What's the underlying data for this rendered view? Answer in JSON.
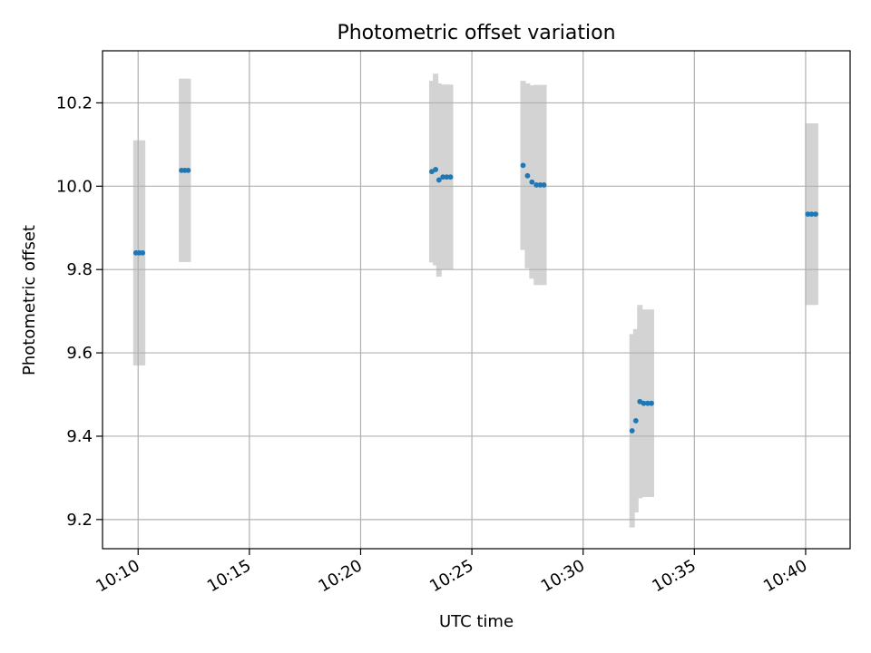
{
  "chart_data": {
    "type": "scatter",
    "title": "Photometric offset variation",
    "xlabel": "UTC time",
    "ylabel": "Photometric offset",
    "x_unit": "minutes after 10:00 UTC",
    "xlim": [
      8.4,
      42.0
    ],
    "ylim": [
      9.13,
      10.325
    ],
    "grid": true,
    "x_ticks": [
      {
        "value": 10,
        "label": "10:10"
      },
      {
        "value": 15,
        "label": "10:15"
      },
      {
        "value": 20,
        "label": "10:20"
      },
      {
        "value": 25,
        "label": "10:25"
      },
      {
        "value": 30,
        "label": "10:30"
      },
      {
        "value": 35,
        "label": "10:35"
      },
      {
        "value": 40,
        "label": "10:40"
      }
    ],
    "y_ticks": [
      {
        "value": 9.2,
        "label": "9.2"
      },
      {
        "value": 9.4,
        "label": "9.4"
      },
      {
        "value": 9.6,
        "label": "9.6"
      },
      {
        "value": 9.8,
        "label": "9.8"
      },
      {
        "value": 10.0,
        "label": "10.0"
      },
      {
        "value": 10.2,
        "label": "10.2"
      }
    ],
    "series": [
      {
        "name": "Photometric offset",
        "color": "#1f77b4",
        "error_color": "#d3d3d3",
        "points": [
          {
            "x": 9.9,
            "y": 9.84,
            "err": 0.27
          },
          {
            "x": 10.05,
            "y": 9.84,
            "err": 0.27
          },
          {
            "x": 10.2,
            "y": 9.84,
            "err": 0.27
          },
          {
            "x": 11.95,
            "y": 10.038,
            "err": 0.22
          },
          {
            "x": 12.1,
            "y": 10.038,
            "err": 0.22
          },
          {
            "x": 12.25,
            "y": 10.038,
            "err": 0.22
          },
          {
            "x": 23.2,
            "y": 10.035,
            "err": 0.218
          },
          {
            "x": 23.37,
            "y": 10.04,
            "err": 0.23
          },
          {
            "x": 23.52,
            "y": 10.015,
            "err": 0.232
          },
          {
            "x": 23.7,
            "y": 10.022,
            "err": 0.222
          },
          {
            "x": 23.87,
            "y": 10.022,
            "err": 0.222
          },
          {
            "x": 24.04,
            "y": 10.022,
            "err": 0.222
          },
          {
            "x": 27.3,
            "y": 10.05,
            "err": 0.203
          },
          {
            "x": 27.5,
            "y": 10.025,
            "err": 0.222
          },
          {
            "x": 27.7,
            "y": 10.01,
            "err": 0.232
          },
          {
            "x": 27.9,
            "y": 10.003,
            "err": 0.24
          },
          {
            "x": 28.07,
            "y": 10.003,
            "err": 0.24
          },
          {
            "x": 28.24,
            "y": 10.003,
            "err": 0.24
          },
          {
            "x": 32.2,
            "y": 9.413,
            "err": 0.232
          },
          {
            "x": 32.37,
            "y": 9.437,
            "err": 0.22
          },
          {
            "x": 32.55,
            "y": 9.483,
            "err": 0.232
          },
          {
            "x": 32.72,
            "y": 9.479,
            "err": 0.225
          },
          {
            "x": 32.9,
            "y": 9.479,
            "err": 0.225
          },
          {
            "x": 33.07,
            "y": 9.479,
            "err": 0.225
          },
          {
            "x": 40.1,
            "y": 9.933,
            "err": 0.218
          },
          {
            "x": 40.27,
            "y": 9.933,
            "err": 0.218
          },
          {
            "x": 40.45,
            "y": 9.933,
            "err": 0.218
          }
        ]
      }
    ]
  }
}
